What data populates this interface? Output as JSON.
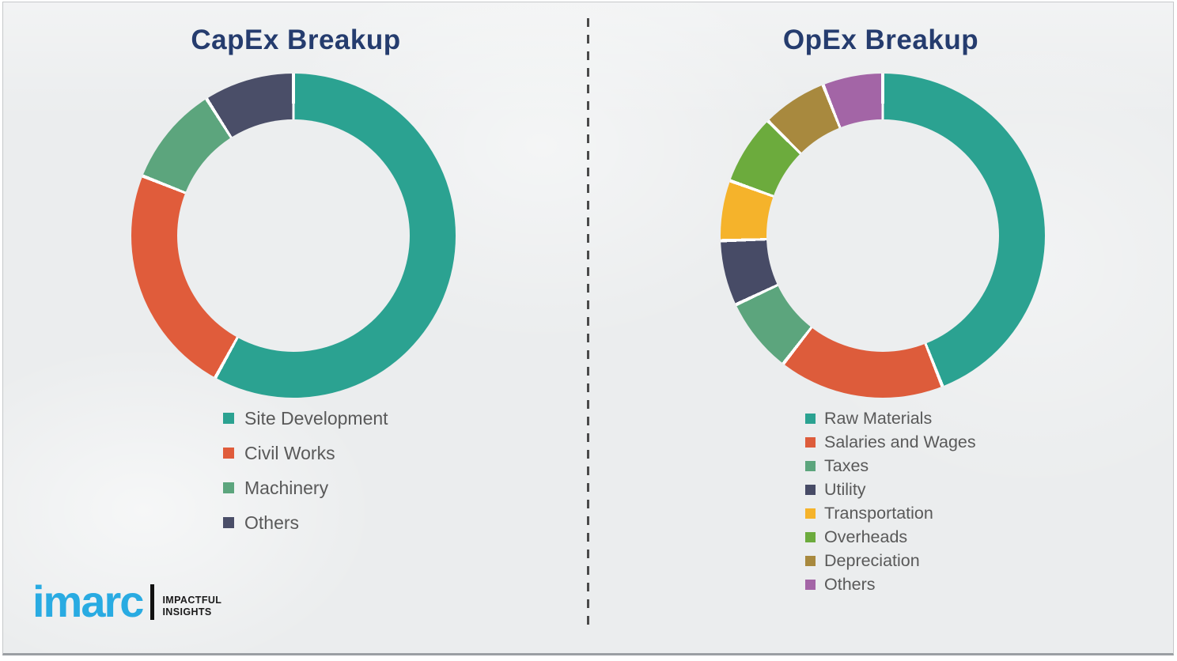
{
  "page": {
    "background_color": "#EBEDEE",
    "border_color": "#C6C8CA",
    "bottom_rule_color": "#9B9FA3",
    "divider": {
      "style": "vertical-dashed",
      "color": "#4A4A4A"
    }
  },
  "chart_data": [
    {
      "type": "pie",
      "subtype": "donut",
      "title": "CapEx Breakup",
      "labels": [
        "Site Development",
        "Civil Works",
        "Machinery",
        "Others"
      ],
      "values": [
        58,
        23,
        10,
        9
      ],
      "colors": [
        "#2BA291",
        "#E05C3B",
        "#5CA57D",
        "#4A4E68"
      ],
      "start_angle_deg": 0,
      "direction": "clockwise",
      "legend_position": "below-left",
      "segment_gap_color": "#FFFFFF"
    },
    {
      "type": "pie",
      "subtype": "donut",
      "title": "OpEx Breakup",
      "labels": [
        "Raw Materials",
        "Salaries and Wages",
        "Taxes",
        "Utility",
        "Transportation",
        "Overheads",
        "Depreciation",
        "Others"
      ],
      "values": [
        44,
        16.5,
        7.5,
        6.5,
        6,
        7,
        6.5,
        6
      ],
      "colors": [
        "#2BA291",
        "#DD5C3B",
        "#5CA57D",
        "#474B66",
        "#F5B32B",
        "#6CAB3D",
        "#A8893E",
        "#A365A6"
      ],
      "start_angle_deg": 0,
      "direction": "clockwise",
      "legend_position": "below-left",
      "segment_gap_color": "#FFFFFF"
    }
  ],
  "titles": {
    "title_color": "#253C6E"
  },
  "logo": {
    "brand": "imarc",
    "brand_color": "#29ABE2",
    "tagline_line1": "IMPACTFUL",
    "tagline_line2": "INSIGHTS"
  }
}
